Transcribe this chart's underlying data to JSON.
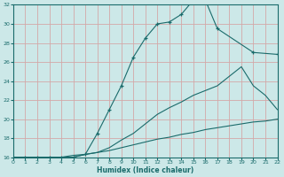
{
  "xlabel": "Humidex (Indice chaleur)",
  "bg_color": "#cce8e8",
  "grid_color": "#c0dcdc",
  "line_color": "#1a6b6b",
  "xlim": [
    0,
    22
  ],
  "ylim": [
    16,
    32
  ],
  "xticks": [
    0,
    1,
    2,
    3,
    4,
    5,
    6,
    7,
    8,
    9,
    10,
    11,
    12,
    13,
    14,
    15,
    16,
    17,
    18,
    19,
    20,
    21,
    22
  ],
  "yticks": [
    16,
    18,
    20,
    22,
    24,
    26,
    28,
    30,
    32
  ],
  "line1_x": [
    0,
    1,
    2,
    3,
    4,
    5,
    6,
    7,
    8,
    9,
    10,
    11,
    12,
    13,
    14,
    15,
    16,
    17,
    20,
    22
  ],
  "line1_y": [
    16,
    16,
    16,
    16,
    16,
    16,
    16.3,
    18.5,
    21.0,
    23.5,
    26.5,
    28.5,
    30.0,
    30.2,
    31.0,
    32.5,
    32.5,
    29.5,
    27.0,
    26.8
  ],
  "line2_x": [
    0,
    1,
    2,
    3,
    4,
    5,
    6,
    7,
    8,
    9,
    10,
    11,
    12,
    13,
    14,
    15,
    16,
    17,
    18,
    19,
    20,
    21,
    22
  ],
  "line2_y": [
    16,
    16,
    16,
    16,
    16,
    16,
    16.3,
    16.5,
    17.0,
    17.8,
    18.5,
    19.5,
    20.5,
    21.2,
    21.8,
    22.5,
    23.0,
    23.5,
    24.5,
    25.5,
    23.5,
    22.5,
    21.0
  ],
  "line3_x": [
    0,
    1,
    2,
    3,
    4,
    5,
    6,
    7,
    8,
    9,
    10,
    11,
    12,
    13,
    14,
    15,
    16,
    17,
    18,
    19,
    20,
    21,
    22
  ],
  "line3_y": [
    16,
    16,
    16,
    16,
    16,
    16.2,
    16.3,
    16.5,
    16.7,
    17.0,
    17.3,
    17.6,
    17.9,
    18.1,
    18.4,
    18.6,
    18.9,
    19.1,
    19.3,
    19.5,
    19.7,
    19.8,
    20.0
  ]
}
